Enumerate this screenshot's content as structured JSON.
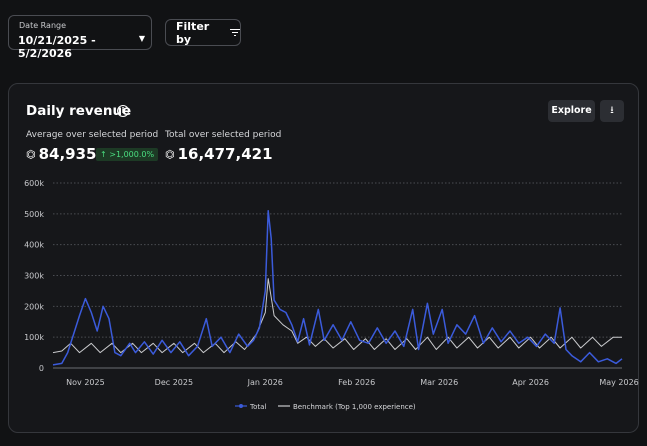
{
  "filters": {
    "date_range_label": "Date Range",
    "date_range_value": "10/21/2025 - 5/2/2026",
    "filter_by_label": "Filter by"
  },
  "card": {
    "title": "Daily revenue",
    "explore_label": "Explore",
    "average_label": "Average over selected period",
    "average_value": "84,935",
    "average_change": "↑ >1,000.0%",
    "total_label": "Total over selected period",
    "total_value": "16,477,421",
    "currency_icon": "robux-icon"
  },
  "colors": {
    "total": "#3b5bdb",
    "benchmark": "#c9cacd",
    "grid": "#4a4c52",
    "positive": "#4ade80"
  },
  "chart_data": {
    "type": "line",
    "x_start": "2025-10-21",
    "x_end": "2026-05-02",
    "x_ticks": [
      {
        "label": "Nov 2025",
        "date": "2025-11-01"
      },
      {
        "label": "Dec 2025",
        "date": "2025-12-01"
      },
      {
        "label": "Jan 2026",
        "date": "2026-01-01"
      },
      {
        "label": "Feb 2026",
        "date": "2026-02-01"
      },
      {
        "label": "Mar 2026",
        "date": "2026-03-01"
      },
      {
        "label": "Apr 2026",
        "date": "2026-04-01"
      },
      {
        "label": "May 2026",
        "date": "2026-05-01"
      }
    ],
    "y_ticks": [
      {
        "label": "0",
        "value": 0
      },
      {
        "label": "100k",
        "value": 100000
      },
      {
        "label": "200k",
        "value": 200000
      },
      {
        "label": "300k",
        "value": 300000
      },
      {
        "label": "400k",
        "value": 400000
      },
      {
        "label": "500k",
        "value": 500000
      },
      {
        "label": "600k",
        "value": 600000
      }
    ],
    "ylim": [
      0,
      600000
    ],
    "grid": true,
    "legend": "bottom",
    "series": [
      {
        "name": "Total",
        "points": [
          [
            "2025-10-21",
            10000
          ],
          [
            "2025-10-24",
            15000
          ],
          [
            "2025-10-26",
            50000
          ],
          [
            "2025-10-28",
            110000
          ],
          [
            "2025-10-30",
            170000
          ],
          [
            "2025-11-01",
            225000
          ],
          [
            "2025-11-03",
            180000
          ],
          [
            "2025-11-05",
            120000
          ],
          [
            "2025-11-07",
            200000
          ],
          [
            "2025-11-09",
            160000
          ],
          [
            "2025-11-11",
            50000
          ],
          [
            "2025-11-13",
            40000
          ],
          [
            "2025-11-16",
            80000
          ],
          [
            "2025-11-18",
            50000
          ],
          [
            "2025-11-21",
            85000
          ],
          [
            "2025-11-24",
            45000
          ],
          [
            "2025-11-27",
            90000
          ],
          [
            "2025-11-30",
            50000
          ],
          [
            "2025-12-03",
            85000
          ],
          [
            "2025-12-06",
            40000
          ],
          [
            "2025-12-09",
            70000
          ],
          [
            "2025-12-12",
            160000
          ],
          [
            "2025-12-14",
            70000
          ],
          [
            "2025-12-17",
            100000
          ],
          [
            "2025-12-20",
            50000
          ],
          [
            "2025-12-23",
            110000
          ],
          [
            "2025-12-26",
            70000
          ],
          [
            "2025-12-28",
            90000
          ],
          [
            "2025-12-30",
            130000
          ],
          [
            "2026-01-01",
            250000
          ],
          [
            "2026-01-02",
            510000
          ],
          [
            "2026-01-03",
            420000
          ],
          [
            "2026-01-04",
            220000
          ],
          [
            "2026-01-06",
            190000
          ],
          [
            "2026-01-08",
            180000
          ],
          [
            "2026-01-10",
            140000
          ],
          [
            "2026-01-12",
            85000
          ],
          [
            "2026-01-14",
            160000
          ],
          [
            "2026-01-16",
            75000
          ],
          [
            "2026-01-19",
            190000
          ],
          [
            "2026-01-21",
            90000
          ],
          [
            "2026-01-24",
            140000
          ],
          [
            "2026-01-27",
            90000
          ],
          [
            "2026-01-30",
            150000
          ],
          [
            "2026-02-02",
            90000
          ],
          [
            "2026-02-05",
            80000
          ],
          [
            "2026-02-08",
            130000
          ],
          [
            "2026-02-11",
            80000
          ],
          [
            "2026-02-14",
            120000
          ],
          [
            "2026-02-17",
            70000
          ],
          [
            "2026-02-20",
            190000
          ],
          [
            "2026-02-22",
            60000
          ],
          [
            "2026-02-25",
            210000
          ],
          [
            "2026-02-27",
            110000
          ],
          [
            "2026-03-02",
            190000
          ],
          [
            "2026-03-04",
            80000
          ],
          [
            "2026-03-07",
            140000
          ],
          [
            "2026-03-10",
            110000
          ],
          [
            "2026-03-13",
            170000
          ],
          [
            "2026-03-16",
            80000
          ],
          [
            "2026-03-19",
            130000
          ],
          [
            "2026-03-22",
            85000
          ],
          [
            "2026-03-25",
            120000
          ],
          [
            "2026-03-28",
            80000
          ],
          [
            "2026-03-31",
            100000
          ],
          [
            "2026-04-03",
            70000
          ],
          [
            "2026-04-06",
            110000
          ],
          [
            "2026-04-09",
            80000
          ],
          [
            "2026-04-11",
            195000
          ],
          [
            "2026-04-13",
            60000
          ],
          [
            "2026-04-15",
            40000
          ],
          [
            "2026-04-18",
            20000
          ],
          [
            "2026-04-21",
            50000
          ],
          [
            "2026-04-24",
            20000
          ],
          [
            "2026-04-27",
            30000
          ],
          [
            "2026-04-30",
            15000
          ],
          [
            "2026-05-02",
            30000
          ]
        ]
      },
      {
        "name": "Benchmark (Top 1,000 experience)",
        "points": [
          [
            "2025-10-21",
            50000
          ],
          [
            "2025-10-24",
            55000
          ],
          [
            "2025-10-27",
            80000
          ],
          [
            "2025-10-30",
            50000
          ],
          [
            "2025-11-03",
            80000
          ],
          [
            "2025-11-06",
            50000
          ],
          [
            "2025-11-10",
            80000
          ],
          [
            "2025-11-13",
            50000
          ],
          [
            "2025-11-17",
            80000
          ],
          [
            "2025-11-20",
            50000
          ],
          [
            "2025-11-24",
            80000
          ],
          [
            "2025-11-27",
            50000
          ],
          [
            "2025-12-01",
            80000
          ],
          [
            "2025-12-04",
            50000
          ],
          [
            "2025-12-08",
            80000
          ],
          [
            "2025-12-11",
            50000
          ],
          [
            "2025-12-15",
            80000
          ],
          [
            "2025-12-18",
            50000
          ],
          [
            "2025-12-22",
            85000
          ],
          [
            "2025-12-25",
            60000
          ],
          [
            "2025-12-29",
            110000
          ],
          [
            "2026-01-01",
            180000
          ],
          [
            "2026-01-02",
            290000
          ],
          [
            "2026-01-04",
            170000
          ],
          [
            "2026-01-07",
            140000
          ],
          [
            "2026-01-10",
            120000
          ],
          [
            "2026-01-12",
            80000
          ],
          [
            "2026-01-15",
            100000
          ],
          [
            "2026-01-18",
            70000
          ],
          [
            "2026-01-21",
            95000
          ],
          [
            "2026-01-24",
            65000
          ],
          [
            "2026-01-28",
            95000
          ],
          [
            "2026-01-31",
            60000
          ],
          [
            "2026-02-04",
            95000
          ],
          [
            "2026-02-07",
            60000
          ],
          [
            "2026-02-11",
            95000
          ],
          [
            "2026-02-14",
            60000
          ],
          [
            "2026-02-18",
            95000
          ],
          [
            "2026-02-21",
            60000
          ],
          [
            "2026-02-25",
            100000
          ],
          [
            "2026-02-28",
            60000
          ],
          [
            "2026-03-04",
            100000
          ],
          [
            "2026-03-07",
            65000
          ],
          [
            "2026-03-11",
            100000
          ],
          [
            "2026-03-14",
            65000
          ],
          [
            "2026-03-18",
            100000
          ],
          [
            "2026-03-21",
            65000
          ],
          [
            "2026-03-25",
            100000
          ],
          [
            "2026-03-28",
            65000
          ],
          [
            "2026-04-01",
            100000
          ],
          [
            "2026-04-04",
            65000
          ],
          [
            "2026-04-08",
            100000
          ],
          [
            "2026-04-11",
            65000
          ],
          [
            "2026-04-15",
            100000
          ],
          [
            "2026-04-18",
            65000
          ],
          [
            "2026-04-22",
            100000
          ],
          [
            "2026-04-25",
            70000
          ],
          [
            "2026-04-29",
            100000
          ],
          [
            "2026-05-02",
            100000
          ]
        ]
      }
    ]
  }
}
